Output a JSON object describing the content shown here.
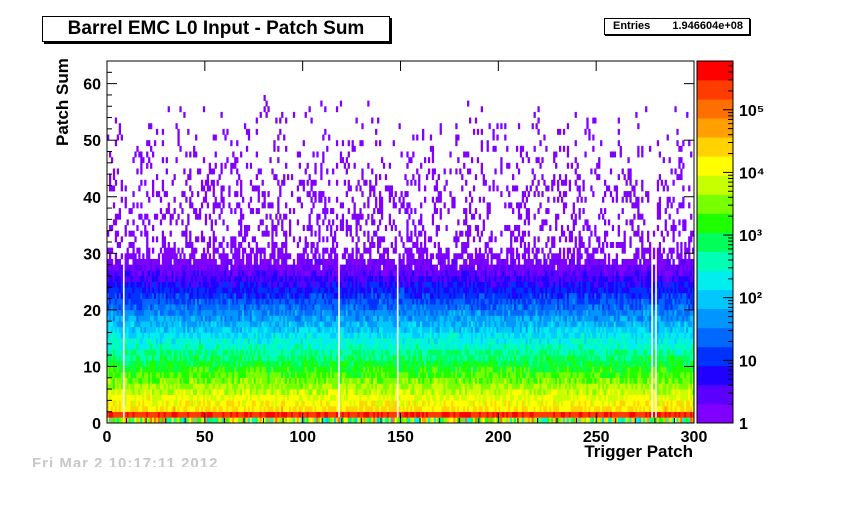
{
  "chart_data": {
    "type": "heatmap",
    "title": "Barrel EMC L0 Input - Patch Sum",
    "stats": {
      "label": "Entries",
      "value": "1.946604e+08"
    },
    "xlabel": "Trigger Patch",
    "ylabel": "Patch Sum",
    "xlim": [
      0,
      300
    ],
    "ylim": [
      0,
      64
    ],
    "x_ticks": [
      0,
      50,
      100,
      150,
      200,
      250,
      300
    ],
    "y_ticks": [
      0,
      10,
      20,
      30,
      40,
      50,
      60
    ],
    "x_tick_labels": [
      "0",
      "50",
      "100",
      "150",
      "200",
      "250",
      "300"
    ],
    "y_tick_labels": [
      "0",
      "10",
      "20",
      "30",
      "40",
      "50",
      "60"
    ],
    "z_scale": "log",
    "zlim": [
      1,
      600000
    ],
    "z_tick_labels": [
      {
        "value": 1,
        "label": "1"
      },
      {
        "value": 10,
        "label": "10"
      },
      {
        "value": 100,
        "label": "10²"
      },
      {
        "value": 1000,
        "label": "10³"
      },
      {
        "value": 10000,
        "label": "10⁴"
      },
      {
        "value": 100000,
        "label": "10⁵"
      }
    ],
    "palette": [
      "#7f00ff",
      "#5b00ff",
      "#2000ff",
      "#0032ff",
      "#0068ff",
      "#0096ff",
      "#00c8ff",
      "#00eeee",
      "#00ffb4",
      "#00ff5a",
      "#1eff00",
      "#78ff00",
      "#c8ff00",
      "#ffff00",
      "#ffd200",
      "#ffa000",
      "#ff6e00",
      "#ff3c00",
      "#ff0000"
    ],
    "dead_patches": [
      8,
      118,
      148,
      278,
      280
    ]
  },
  "footer": {
    "stamp": "Fri Mar 2 10:17:11 2012"
  }
}
